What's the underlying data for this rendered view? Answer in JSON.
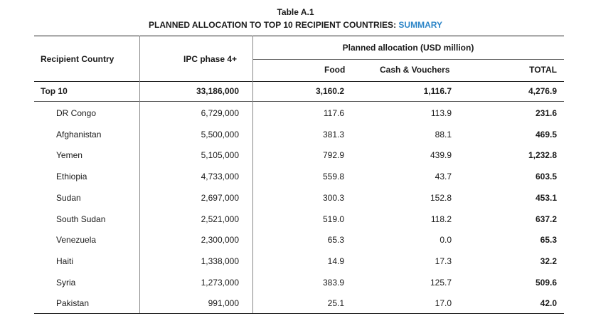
{
  "caption": {
    "title": "Table A.1",
    "subtitle_main": "PLANNED ALLOCATION TO TOP 10 RECIPIENT COUNTRIES: ",
    "subtitle_highlight": "SUMMARY"
  },
  "headers": {
    "country": "Recipient Country",
    "ipc": "IPC phase 4+",
    "planned": "Planned allocation (USD million)",
    "food": "Food",
    "cash": "Cash & Vouchers",
    "total": "TOTAL"
  },
  "summary": {
    "country": "Top 10",
    "ipc": "33,186,000",
    "food": "3,160.2",
    "cash": "1,116.7",
    "total": "4,276.9"
  },
  "rows": [
    {
      "country": "DR Congo",
      "ipc": "6,729,000",
      "food": "117.6",
      "cash": "113.9",
      "total": "231.6"
    },
    {
      "country": "Afghanistan",
      "ipc": "5,500,000",
      "food": "381.3",
      "cash": "88.1",
      "total": "469.5"
    },
    {
      "country": "Yemen",
      "ipc": "5,105,000",
      "food": "792.9",
      "cash": "439.9",
      "total": "1,232.8"
    },
    {
      "country": "Ethiopia",
      "ipc": "4,733,000",
      "food": "559.8",
      "cash": "43.7",
      "total": "603.5"
    },
    {
      "country": "Sudan",
      "ipc": "2,697,000",
      "food": "300.3",
      "cash": "152.8",
      "total": "453.1"
    },
    {
      "country": "South Sudan",
      "ipc": "2,521,000",
      "food": "519.0",
      "cash": "118.2",
      "total": "637.2"
    },
    {
      "country": "Venezuela",
      "ipc": "2,300,000",
      "food": "65.3",
      "cash": "0.0",
      "total": "65.3"
    },
    {
      "country": "Haiti",
      "ipc": "1,338,000",
      "food": "14.9",
      "cash": "17.3",
      "total": "32.2"
    },
    {
      "country": "Syria",
      "ipc": "1,273,000",
      "food": "383.9",
      "cash": "125.7",
      "total": "509.6"
    },
    {
      "country": "Pakistan",
      "ipc": "991,000",
      "food": "25.1",
      "cash": "17.0",
      "total": "42.0"
    }
  ]
}
